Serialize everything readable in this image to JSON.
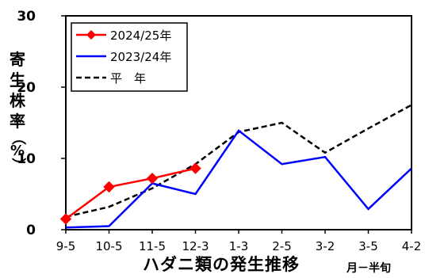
{
  "chart_data": {
    "type": "line",
    "categories": [
      "9-5",
      "10-5",
      "11-5",
      "12-3",
      "1-3",
      "2-5",
      "3-2",
      "3-5",
      "4-2"
    ],
    "ylim": [
      0,
      30
    ],
    "yticks": [
      0,
      10,
      20,
      30
    ],
    "ylabel_chars": [
      "寄",
      "生",
      "株",
      "率",
      "（",
      "%",
      "）"
    ],
    "xlabel": "ハダニ類の発生推移",
    "xunit": "月－半旬",
    "grid": false,
    "legend_position": "top-left",
    "series": [
      {
        "name": "2024/25年",
        "values": [
          1.5,
          6.0,
          7.2,
          8.6,
          null,
          null,
          null,
          null,
          null
        ],
        "color": "#ff0000",
        "style": "solid",
        "marker": "diamond"
      },
      {
        "name": "2023/24年",
        "values": [
          0.3,
          0.5,
          6.5,
          5.0,
          13.9,
          9.2,
          10.2,
          2.9,
          8.6
        ],
        "color": "#0000ff",
        "style": "solid",
        "marker": "none"
      },
      {
        "name": "平　年",
        "values": [
          1.8,
          3.2,
          5.8,
          9.2,
          13.7,
          15.0,
          10.8,
          14.2,
          17.5
        ],
        "color": "#000000",
        "style": "dashed",
        "marker": "none"
      }
    ]
  }
}
